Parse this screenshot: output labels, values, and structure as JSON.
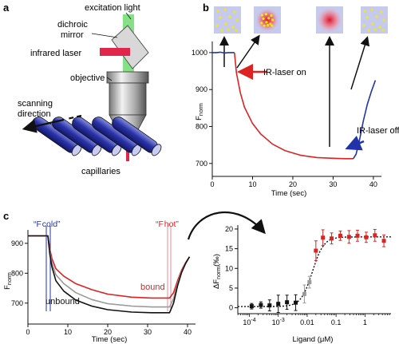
{
  "panels": {
    "a": {
      "letter": "a",
      "labels": {
        "excitation": "excitation light",
        "dichroic_1": "dichroic",
        "dichroic_2": "mirror",
        "laser": "infrared laser",
        "objective": "objective",
        "scanning_1": "scanning",
        "scanning_2": "direction",
        "capillaries": "capillaries"
      }
    },
    "b": {
      "letter": "b",
      "annotations": {
        "ir_on": "IR-laser on",
        "ir_off": "IR-laser off"
      },
      "ylabel_main": "F",
      "ylabel_sub": "norm",
      "xlabel": "Time (sec)",
      "chart_data": {
        "type": "line",
        "xlim": [
          0,
          42
        ],
        "ylim": [
          665,
          1030
        ],
        "xticks": [
          0,
          10,
          20,
          30,
          40
        ],
        "yticks": [
          700,
          800,
          900,
          1000
        ],
        "series": [
          {
            "color": "#2233aa",
            "x": [
              0,
              1,
              2,
              3,
              4,
              5,
              5.5
            ],
            "y": [
              1000,
              1000,
              1001,
              999,
              1000,
              1000,
              1000
            ]
          },
          {
            "color": "#dd2222",
            "x": [
              5.5,
              6,
              7,
              8,
              10,
              12,
              15,
              18,
              22,
              26,
              30,
              33,
              35
            ],
            "y": [
              1000,
              945,
              890,
              852,
              808,
              780,
              752,
              735,
              722,
              716,
              714,
              713,
              713
            ]
          },
          {
            "color": "#2233aa",
            "x": [
              35,
              35.7,
              36.5,
              37.5,
              38.5,
              39.5,
              40.5
            ],
            "y": [
              713,
              725,
              760,
              815,
              860,
              895,
              925
            ]
          }
        ]
      }
    },
    "c": {
      "letter": "c",
      "labels": {
        "f_cold": "“F cold”",
        "f_hot": "“F hot”",
        "bound": "bound",
        "unbound": "unbound"
      },
      "ylabel_main": "F",
      "ylabel_sub": "norm",
      "xlabel": "Time (sec)",
      "chart_data": {
        "type": "line",
        "xlim": [
          0,
          42
        ],
        "ylim": [
          630,
          945
        ],
        "xticks": [
          0,
          10,
          20,
          30,
          40
        ],
        "yticks": [
          700,
          800,
          900
        ],
        "series": [
          {
            "name": "bound",
            "color": "#dd2222",
            "x": [
              0,
              5,
              5.5,
              6,
              7,
              9,
              12,
              16,
              20,
              26,
              31,
              35.5,
              36.5,
              37.5,
              38.5,
              39.5,
              40.5
            ],
            "y": [
              925,
              925,
              880,
              850,
              815,
              790,
              765,
              745,
              730,
              720,
              717,
              717,
              735,
              775,
              810,
              835,
              855
            ]
          },
          {
            "color": "#999999",
            "x": [
              0,
              5,
              5.5,
              6,
              7,
              9,
              12,
              16,
              20,
              26,
              31,
              35.5,
              36.5,
              37.5,
              38.5,
              39.5,
              40.5
            ],
            "y": [
              925,
              925,
              870,
              835,
              795,
              765,
              735,
              712,
              698,
              690,
              687,
              687,
              715,
              765,
              805,
              833,
              855
            ]
          },
          {
            "name": "unbound",
            "color": "#111111",
            "x": [
              0,
              5,
              5.5,
              6,
              7,
              9,
              12,
              16,
              20,
              26,
              31,
              35.5,
              36.5,
              37.5,
              38.5,
              39.5,
              40.5
            ],
            "y": [
              925,
              925,
              862,
              822,
              775,
              740,
              710,
              690,
              678,
              670,
              668,
              668,
              700,
              758,
              802,
              832,
              855
            ]
          }
        ]
      }
    },
    "d": {
      "ylabel_main": "ΔF",
      "ylabel_sub": "norm",
      "ylabel_unit": "(‰)",
      "xlabel": "Ligand (μM)",
      "chart_data": {
        "type": "scatter",
        "log_x": true,
        "xlim_log10": [
          -4.4,
          0.9
        ],
        "ylim": [
          -1.5,
          21
        ],
        "yticks": [
          0,
          5,
          10,
          15,
          20
        ],
        "xtick_labels": [
          {
            "base": "10",
            "exp": "-4",
            "log10": -4
          },
          {
            "base": "10",
            "exp": "-3",
            "log10": -3
          },
          {
            "text": "0.01",
            "log10": -2
          },
          {
            "text": "0.1",
            "log10": -1
          },
          {
            "text": "1",
            "log10": 0
          }
        ],
        "fit_curve": {
          "bottom": 0.3,
          "top": 18.0,
          "log_ec50": -1.82,
          "hill": 2.2
        },
        "points": [
          {
            "x": 0.00012,
            "y": 0.4,
            "err": 0.7,
            "color": "#111111"
          },
          {
            "x": 0.00025,
            "y": 0.7,
            "err": 0.8,
            "color": "#111111"
          },
          {
            "x": 0.0005,
            "y": 0.6,
            "err": 1.4,
            "color": "#111111"
          },
          {
            "x": 0.001,
            "y": 1.0,
            "err": 2.2,
            "color": "#111111"
          },
          {
            "x": 0.002,
            "y": 1.4,
            "err": 1.8,
            "color": "#111111"
          },
          {
            "x": 0.004,
            "y": 1.3,
            "err": 2.0,
            "color": "#111111"
          },
          {
            "x": 0.008,
            "y": 3.5,
            "err": 2.3,
            "color": "#999999"
          },
          {
            "x": 0.012,
            "y": 6.5,
            "err": 1.5,
            "color": "#999999"
          },
          {
            "x": 0.02,
            "y": 14.5,
            "err": 2.5,
            "color": "#dd2222"
          },
          {
            "x": 0.035,
            "y": 17.8,
            "err": 2.0,
            "color": "#dd2222"
          },
          {
            "x": 0.07,
            "y": 17.6,
            "err": 1.4,
            "color": "#dd2222"
          },
          {
            "x": 0.14,
            "y": 18.3,
            "err": 1.2,
            "color": "#dd2222"
          },
          {
            "x": 0.28,
            "y": 18.0,
            "err": 1.6,
            "color": "#dd2222"
          },
          {
            "x": 0.55,
            "y": 18.3,
            "err": 1.4,
            "color": "#dd2222"
          },
          {
            "x": 1.1,
            "y": 17.9,
            "err": 1.3,
            "color": "#dd2222"
          },
          {
            "x": 2.2,
            "y": 18.4,
            "err": 1.5,
            "color": "#dd2222"
          },
          {
            "x": 4.5,
            "y": 17.0,
            "err": 1.5,
            "color": "#dd2222"
          }
        ]
      }
    }
  }
}
